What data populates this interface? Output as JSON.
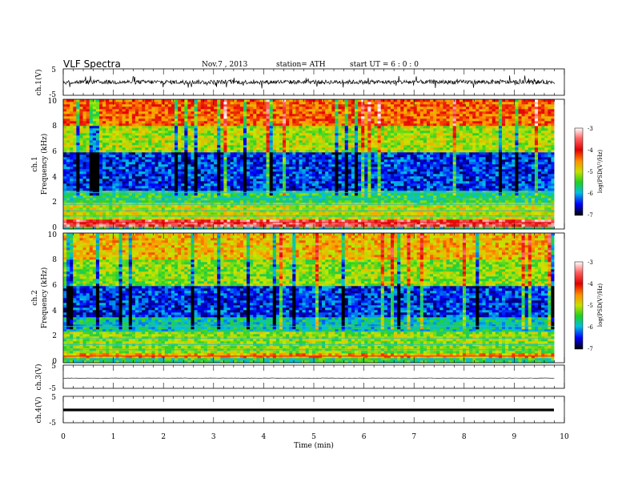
{
  "header": {
    "title": "VLF  Spectra",
    "date": "Nov.7  , 2013",
    "station": "station= ATH",
    "start": "start  UT  =   6  : 0  : 0"
  },
  "chart_data": {
    "type": "heatmap",
    "xlabel": "Time  (min)",
    "xlim": [
      0,
      10
    ],
    "x_tick_labels": [
      "0",
      "1",
      "2",
      "3",
      "4",
      "5",
      "6",
      "7",
      "8",
      "9",
      "10"
    ],
    "data_extent_min": 9.8,
    "panels": [
      {
        "id": "ch1-waveform",
        "type": "line",
        "ylabel": "ch.1(V)",
        "ylim": [
          -5,
          5
        ],
        "y_tick_labels": [
          "5",
          "-5"
        ],
        "trace": "noise, mean about 0 V, peaks to about ±2.5 V"
      },
      {
        "id": "ch1-spectrogram",
        "type": "heatmap",
        "ylabel": "ch.1\nFrequency  (kHz)",
        "ylim": [
          0,
          10
        ],
        "y_tick_labels": [
          "0",
          "2",
          "4",
          "6",
          "8",
          "10"
        ],
        "colorbar": {
          "label": "log(PSD(V²/Hz)",
          "range": [
            -7,
            -3
          ],
          "tick_labels": [
            "-3",
            "-4",
            "-5",
            "-6",
            "-7"
          ]
        },
        "level_by_band": [
          {
            "f": [
              0.0,
              0.2
            ],
            "level": -5.7
          },
          {
            "f": [
              0.2,
              0.7
            ],
            "level": -3.6
          },
          {
            "f": [
              0.7,
              2.0
            ],
            "level": -5.0
          },
          {
            "f": [
              2.0,
              3.0
            ],
            "level": -5.6
          },
          {
            "f": [
              3.0,
              6.0
            ],
            "level": -6.4
          },
          {
            "f": [
              6.0,
              8.0
            ],
            "level": -5.1
          },
          {
            "f": [
              8.0,
              10.0
            ],
            "level": -4.3
          }
        ]
      },
      {
        "id": "ch2-spectrogram",
        "type": "heatmap",
        "ylabel": "ch.2\nFrequency  (kHz)",
        "ylim": [
          0,
          10
        ],
        "y_tick_labels": [
          "0",
          "2",
          "4",
          "6",
          "8",
          "10"
        ],
        "colorbar": {
          "label": "log(PSD(V²/Hz)",
          "range": [
            -7,
            -3
          ],
          "tick_labels": [
            "-3",
            "-4",
            "-5",
            "-6",
            "-7"
          ]
        },
        "level_by_band": [
          {
            "f": [
              0.0,
              0.3
            ],
            "level": -5.6
          },
          {
            "f": [
              0.3,
              0.7
            ],
            "level": -4.6
          },
          {
            "f": [
              0.7,
              2.5
            ],
            "level": -5.2
          },
          {
            "f": [
              2.5,
              3.5
            ],
            "level": -5.8
          },
          {
            "f": [
              3.5,
              6.0
            ],
            "level": -6.4
          },
          {
            "f": [
              6.0,
              8.0
            ],
            "level": -5.2
          },
          {
            "f": [
              8.0,
              10.0
            ],
            "level": -4.7
          }
        ]
      },
      {
        "id": "ch3-waveform",
        "type": "line",
        "ylabel": "ch.3(V)",
        "ylim": [
          -5,
          5
        ],
        "y_tick_labels": [
          "5",
          "-5"
        ],
        "trace": "near-flat line at about 0 V"
      },
      {
        "id": "ch4-waveform",
        "type": "line",
        "ylabel": "ch.4(V)",
        "ylim": [
          -5,
          5
        ],
        "y_tick_labels": [
          "5",
          "-5"
        ],
        "trace": "thick flat line at about 0 V"
      }
    ]
  }
}
